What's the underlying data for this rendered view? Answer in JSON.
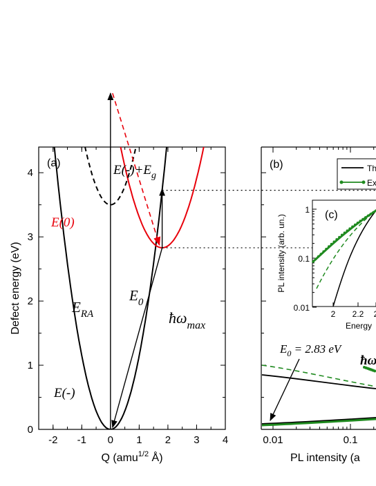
{
  "chart_data": [
    {
      "panel_label": "(a)",
      "type": "line",
      "xlabel": "Q (amu",
      "xlabel_sup": "1/2",
      "xlabel_tail": " Å)",
      "ylabel": "Defect energy (eV)",
      "xlim": [
        -2.5,
        4
      ],
      "ylim": [
        0,
        4.4
      ],
      "xticks": [
        "-2",
        "-1",
        "0",
        "1",
        "2",
        "3",
        "4"
      ],
      "yticks": [
        "0",
        "1",
        "2",
        "3",
        "4"
      ],
      "series": [
        {
          "name": "E(-)",
          "color": "#000000",
          "style": "solid",
          "min_x": 0.0,
          "min_y": 0.0,
          "curvature": 0.115
        },
        {
          "name": "E(0)",
          "color": "#e8000b",
          "style": "solid",
          "min_x": 1.8,
          "min_y": 2.83,
          "curvature": 0.075
        },
        {
          "name": "E(-)+Eg",
          "color": "#000000",
          "style": "dashed",
          "min_x": 0.0,
          "min_y": 3.5,
          "curvature": 0.115
        }
      ],
      "annotations": {
        "e_minus_plus_eg_1": "E(-)+E",
        "e_minus_plus_eg_sub": "g",
        "e_zero": "E(0)",
        "e_minus": "E(-)",
        "e_ra": "E",
        "e_ra_sub": "RA",
        "e_0": "E",
        "e_0_sub": "0",
        "hw": "ħω",
        "hw_sub": "max"
      }
    },
    {
      "panel_label": "(b)",
      "type": "line",
      "xlabel": "PL intensity (a",
      "xscale": "log",
      "xticks": [
        "0.01",
        "0.1"
      ],
      "legend": [
        "Th",
        "Ex"
      ],
      "legend_colors": [
        "#000000",
        "#1f8a1f"
      ],
      "annotation": "E",
      "annotation_sub": "0",
      "annotation_tail": " = 2.83 eV",
      "hw": "ħω"
    },
    {
      "panel_label": "(c)",
      "type": "line",
      "ylabel": "PL intensity (arb. un.)",
      "xlabel": "Energy",
      "yscale": "log",
      "yticks": [
        "1",
        "0.1",
        "0.01"
      ],
      "xticks": [
        "2",
        "2.2",
        "2"
      ]
    }
  ]
}
